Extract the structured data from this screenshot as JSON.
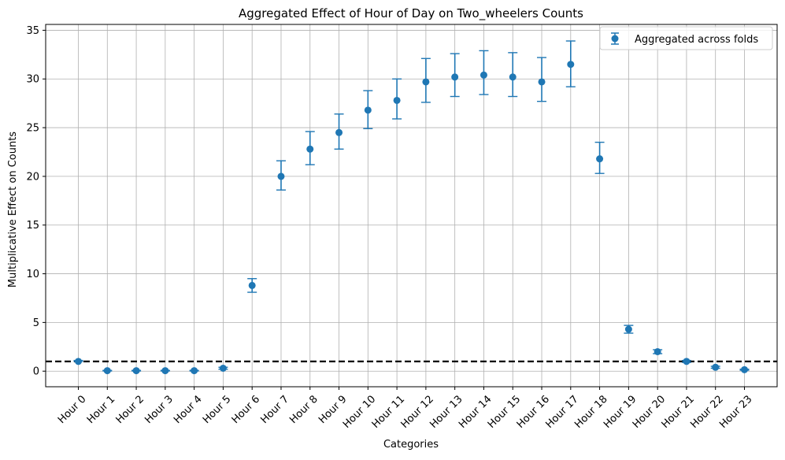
{
  "chart_data": {
    "type": "scatter",
    "title": "Aggregated Effect of Hour of Day on Two_wheelers Counts",
    "xlabel": "Categories",
    "ylabel": "Multiplicative Effect on Counts",
    "categories": [
      "Hour 0",
      "Hour 1",
      "Hour 2",
      "Hour 3",
      "Hour 4",
      "Hour 5",
      "Hour 6",
      "Hour 7",
      "Hour 8",
      "Hour 9",
      "Hour 10",
      "Hour 11",
      "Hour 12",
      "Hour 13",
      "Hour 14",
      "Hour 15",
      "Hour 16",
      "Hour 17",
      "Hour 18",
      "Hour 19",
      "Hour 20",
      "Hour 21",
      "Hour 22",
      "Hour 23"
    ],
    "series": [
      {
        "name": "Aggregated across folds",
        "color": "#1f77b4",
        "values": [
          1.0,
          0.05,
          0.05,
          0.05,
          0.05,
          0.3,
          8.8,
          20.0,
          22.8,
          24.5,
          26.8,
          27.8,
          29.7,
          30.2,
          30.4,
          30.2,
          29.7,
          31.5,
          21.8,
          4.3,
          2.0,
          1.0,
          0.4,
          0.15
        ],
        "lower": [
          1.0,
          0.02,
          0.02,
          0.02,
          0.02,
          0.2,
          8.1,
          18.6,
          21.2,
          22.8,
          24.9,
          25.9,
          27.6,
          28.2,
          28.4,
          28.2,
          27.7,
          29.2,
          20.3,
          3.9,
          1.8,
          0.9,
          0.3,
          0.1
        ],
        "upper": [
          1.1,
          0.08,
          0.08,
          0.08,
          0.08,
          0.4,
          9.5,
          21.6,
          24.6,
          26.4,
          28.8,
          30.0,
          32.1,
          32.6,
          32.9,
          32.7,
          32.2,
          33.9,
          23.5,
          4.7,
          2.2,
          1.1,
          0.5,
          0.2
        ]
      }
    ],
    "reference_line": {
      "y": 1,
      "color": "#000000",
      "style": "dashed"
    },
    "ylim": [
      -1.6,
      35.6
    ],
    "yticks": [
      0,
      5,
      10,
      15,
      20,
      25,
      30,
      35
    ],
    "grid": true,
    "legend_position": "top-right"
  }
}
